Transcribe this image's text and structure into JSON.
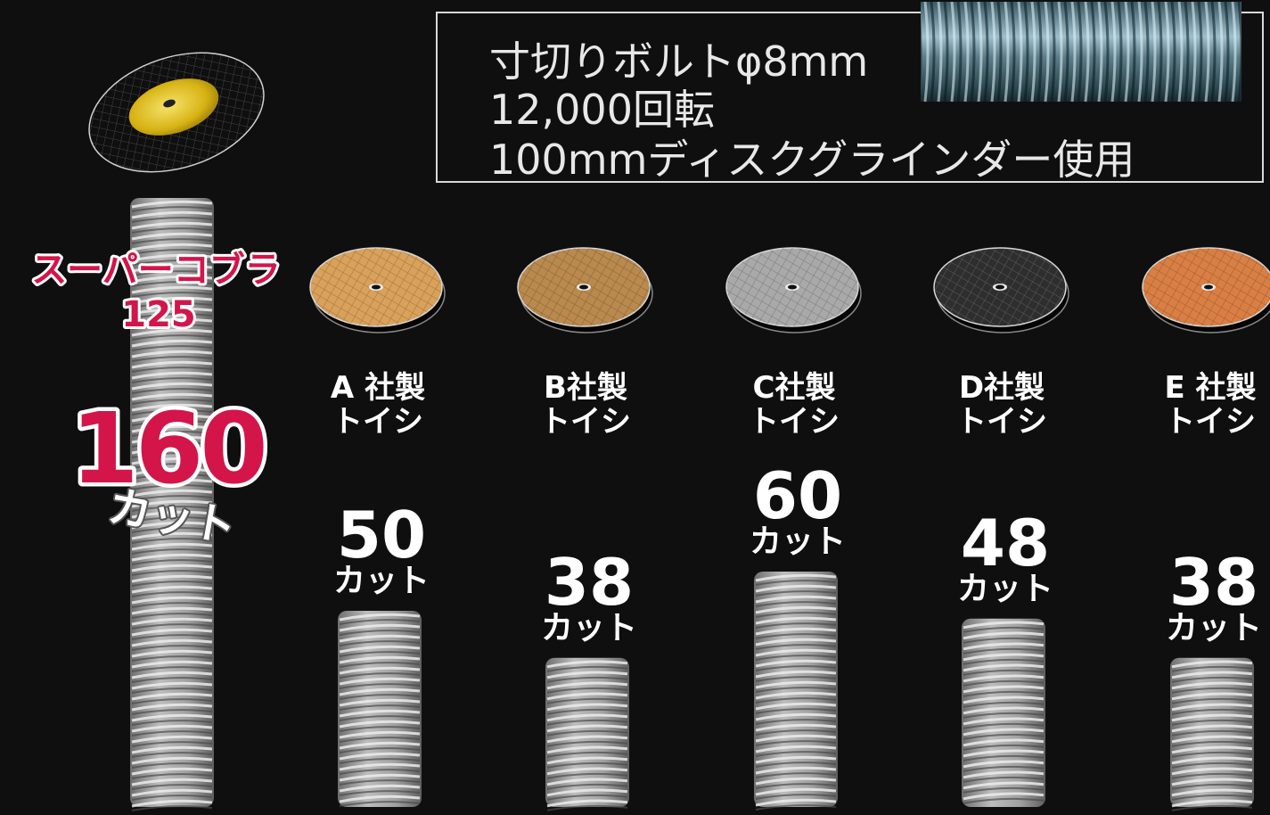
{
  "header": {
    "line1": "寸切りボルトφ8mm",
    "line2": "12,000回転",
    "line3": "100mmディスクグラインダー使用"
  },
  "chart_data": {
    "type": "bar",
    "categories": [
      "スーパーコブラ 125",
      "A 社製 トイシ",
      "B社製 トイシ",
      "C社製 トイシ",
      "D社製 トイシ",
      "E 社製 トイシ"
    ],
    "values": [
      160,
      50,
      38,
      60,
      48,
      38
    ],
    "unit": "カット",
    "featured": {
      "name_line1": "スーパーコブラ",
      "name_line2": "125",
      "value_label": "160",
      "unit_label": "カット"
    },
    "competitors": [
      {
        "name_line1": "A 社製",
        "name_line2": "トイシ",
        "value_label": "50",
        "unit_label": "カット",
        "disc_color": "#d9a15a"
      },
      {
        "name_line1": "B社製",
        "name_line2": "トイシ",
        "value_label": "38",
        "unit_label": "カット",
        "disc_color": "#b9894e"
      },
      {
        "name_line1": "C社製",
        "name_line2": "トイシ",
        "value_label": "60",
        "unit_label": "カット",
        "disc_color": "#a9a9a9"
      },
      {
        "name_line1": "D社製",
        "name_line2": "トイシ",
        "value_label": "48",
        "unit_label": "カット",
        "disc_color": "#2e2e2e"
      },
      {
        "name_line1": "E 社製",
        "name_line2": "トイシ",
        "value_label": "38",
        "unit_label": "カット",
        "disc_color": "#d97f44"
      }
    ],
    "colors": {
      "background": "#0f0f0f",
      "bolt": "#a6a6a6",
      "featured_text": "#d3154a",
      "featured_disc": "#e2c21c",
      "label_text": "#ffffff"
    }
  }
}
